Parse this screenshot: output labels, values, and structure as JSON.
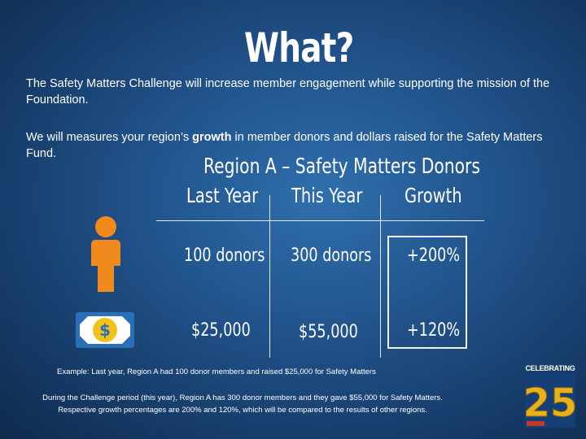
{
  "title": "What?",
  "intro": {
    "line1": "The Safety Matters Challenge will increase member engagement while supporting the mission of the Foundation.",
    "line2_before": "We will measures your region’s ",
    "line2_bold": "growth",
    "line2_after": " in member donors and dollars raised for the Safety Matters Fund."
  },
  "table": {
    "title": "Region A – Safety Matters Donors",
    "headers": [
      "Last Year",
      "This Year",
      "Growth"
    ],
    "rows": [
      {
        "icon": "person-icon",
        "last_year": "100 donors",
        "this_year": "300 donors",
        "growth": "+200%"
      },
      {
        "icon": "money-icon",
        "last_year": "$25,000",
        "this_year": "$55,000",
        "growth": "+120%"
      }
    ]
  },
  "example_text": "Example: Last year, Region A had 100 donor members and raised $25,000 for Safety Matters",
  "note_text": "During the Challenge period (this year), Region A has 300 donor members and they gave $55,000 for Safety Matters. Respective growth percentages are 200% and 120%, which will be compared to the results of other regions.",
  "badge": {
    "label": "CELEBRATING",
    "number": "25"
  },
  "colors": {
    "person_orange": "#f08a1c",
    "money_blue": "#2a6fb8",
    "money_yellow": "#f2c21b",
    "badge_gold": "#e9b21a"
  }
}
